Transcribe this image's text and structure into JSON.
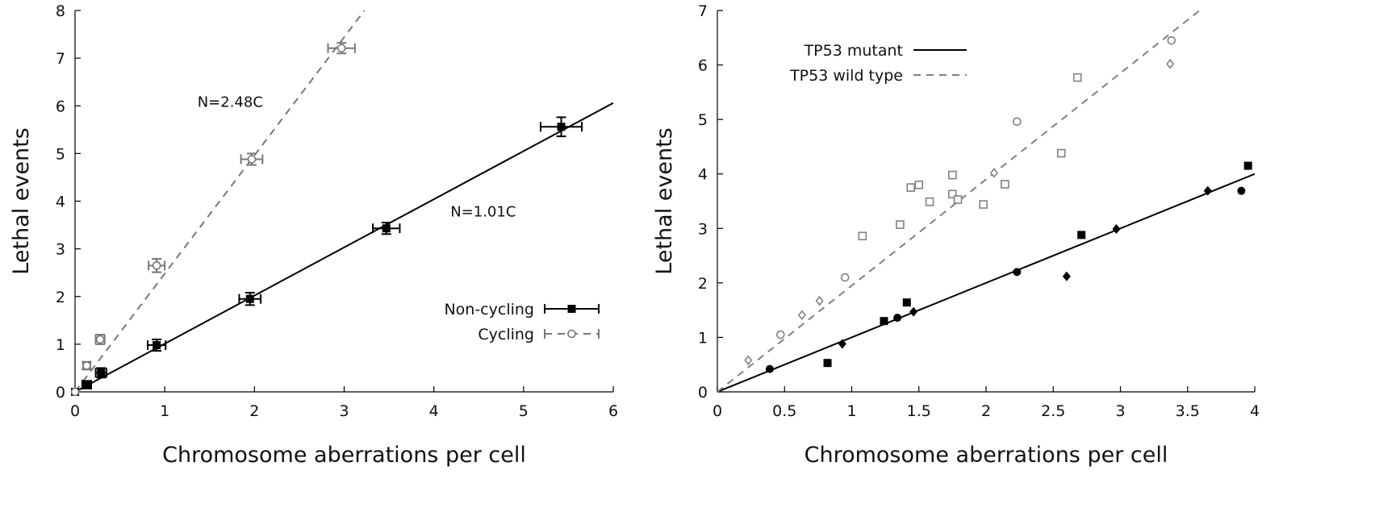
{
  "chart_data": [
    {
      "type": "scatter",
      "xlabel": "Chromosome aberrations per cell",
      "ylabel": "Lethal events",
      "xlim": [
        0,
        6
      ],
      "ylim": [
        0,
        8
      ],
      "xticks": [
        0,
        1,
        2,
        3,
        4,
        5,
        6
      ],
      "yticks": [
        0,
        1,
        2,
        3,
        4,
        5,
        6,
        7,
        8
      ],
      "series": [
        {
          "name": "Non-cycling",
          "color": "#000000",
          "marker": "square",
          "line": "solid",
          "points": [
            {
              "x": 0.0,
              "y": 0.0,
              "xerr": 0.0,
              "yerr": 0.0
            },
            {
              "x": 0.13,
              "y": 0.15,
              "xerr": 0.05,
              "yerr": 0.08
            },
            {
              "x": 0.29,
              "y": 0.4,
              "xerr": 0.06,
              "yerr": 0.1
            },
            {
              "x": 0.91,
              "y": 0.98,
              "xerr": 0.1,
              "yerr": 0.12
            },
            {
              "x": 1.95,
              "y": 1.95,
              "xerr": 0.12,
              "yerr": 0.13
            },
            {
              "x": 3.47,
              "y": 3.43,
              "xerr": 0.15,
              "yerr": 0.12
            },
            {
              "x": 5.42,
              "y": 5.56,
              "xerr": 0.23,
              "yerr": 0.2
            }
          ],
          "fit": {
            "slope": 1.01,
            "x_range": [
              0,
              6
            ]
          }
        },
        {
          "name": "Cycling",
          "color": "#777777",
          "marker": "circle-open",
          "line": "dashed",
          "points": [
            {
              "x": 0.0,
              "y": 0.0,
              "xerr": 0.0,
              "yerr": 0.0
            },
            {
              "x": 0.13,
              "y": 0.55,
              "xerr": 0.04,
              "yerr": 0.08
            },
            {
              "x": 0.28,
              "y": 1.1,
              "xerr": 0.05,
              "yerr": 0.1
            },
            {
              "x": 0.91,
              "y": 2.65,
              "xerr": 0.09,
              "yerr": 0.14
            },
            {
              "x": 1.97,
              "y": 4.88,
              "xerr": 0.12,
              "yerr": 0.12
            },
            {
              "x": 2.97,
              "y": 7.21,
              "xerr": 0.15,
              "yerr": 0.11
            }
          ],
          "fit": {
            "slope": 2.48,
            "x_range": [
              0,
              3.23
            ]
          }
        }
      ],
      "annotations": [
        {
          "text": "N=2.48C",
          "x": 1.73,
          "y": 5.98
        },
        {
          "text": "N=1.01C",
          "x": 4.55,
          "y": 3.68
        }
      ],
      "legend": {
        "position": "bottom-right",
        "entries": [
          "Non-cycling",
          "Cycling"
        ]
      }
    },
    {
      "type": "scatter",
      "xlabel": "Chromosome aberrations per cell",
      "ylabel": "Lethal events",
      "xlim": [
        0,
        4
      ],
      "ylim": [
        0,
        7
      ],
      "xticks": [
        0,
        0.5,
        1,
        1.5,
        2,
        2.5,
        3,
        3.5,
        4
      ],
      "yticks": [
        0,
        1,
        2,
        3,
        4,
        5,
        6,
        7
      ],
      "series": [
        {
          "name": "TP53 mutant",
          "color": "#000000",
          "line": "solid",
          "fit": {
            "slope": 1.0,
            "x_range": [
              0,
              4
            ]
          },
          "points": [
            {
              "x": 0.39,
              "y": 0.42,
              "marker": "circle"
            },
            {
              "x": 1.34,
              "y": 1.36,
              "marker": "circle"
            },
            {
              "x": 2.23,
              "y": 2.2,
              "marker": "circle"
            },
            {
              "x": 3.9,
              "y": 3.69,
              "marker": "circle"
            },
            {
              "x": 0.82,
              "y": 0.53,
              "marker": "square"
            },
            {
              "x": 1.24,
              "y": 1.3,
              "marker": "square"
            },
            {
              "x": 1.41,
              "y": 1.64,
              "marker": "square"
            },
            {
              "x": 2.71,
              "y": 2.88,
              "marker": "square"
            },
            {
              "x": 3.95,
              "y": 4.15,
              "marker": "square"
            },
            {
              "x": 0.93,
              "y": 0.88,
              "marker": "diamond"
            },
            {
              "x": 1.46,
              "y": 1.47,
              "marker": "diamond"
            },
            {
              "x": 2.6,
              "y": 2.12,
              "marker": "diamond"
            },
            {
              "x": 2.97,
              "y": 2.99,
              "marker": "diamond"
            },
            {
              "x": 3.65,
              "y": 3.69,
              "marker": "diamond"
            }
          ]
        },
        {
          "name": "TP53 wild type",
          "color": "#808080",
          "line": "dashed",
          "fit": {
            "slope": 1.95,
            "x_range": [
              0,
              3.6
            ]
          },
          "points": [
            {
              "x": 0.47,
              "y": 1.05,
              "marker": "circle-open"
            },
            {
              "x": 0.95,
              "y": 2.1,
              "marker": "circle-open"
            },
            {
              "x": 2.23,
              "y": 4.96,
              "marker": "circle-open"
            },
            {
              "x": 3.38,
              "y": 6.45,
              "marker": "circle-open"
            },
            {
              "x": 1.08,
              "y": 2.86,
              "marker": "square-open"
            },
            {
              "x": 1.36,
              "y": 3.07,
              "marker": "square-open"
            },
            {
              "x": 1.44,
              "y": 3.75,
              "marker": "square-open"
            },
            {
              "x": 1.5,
              "y": 3.8,
              "marker": "square-open"
            },
            {
              "x": 1.58,
              "y": 3.49,
              "marker": "square-open"
            },
            {
              "x": 1.75,
              "y": 3.98,
              "marker": "square-open"
            },
            {
              "x": 1.75,
              "y": 3.63,
              "marker": "square-open"
            },
            {
              "x": 1.79,
              "y": 3.53,
              "marker": "square-open"
            },
            {
              "x": 1.98,
              "y": 3.44,
              "marker": "square-open"
            },
            {
              "x": 2.14,
              "y": 3.81,
              "marker": "square-open"
            },
            {
              "x": 2.56,
              "y": 4.38,
              "marker": "square-open"
            },
            {
              "x": 2.68,
              "y": 5.77,
              "marker": "square-open"
            },
            {
              "x": 0.23,
              "y": 0.58,
              "marker": "diamond-open"
            },
            {
              "x": 0.63,
              "y": 1.41,
              "marker": "diamond-open"
            },
            {
              "x": 0.76,
              "y": 1.67,
              "marker": "diamond-open"
            },
            {
              "x": 2.06,
              "y": 4.02,
              "marker": "diamond-open"
            },
            {
              "x": 3.37,
              "y": 6.02,
              "marker": "diamond-open"
            }
          ]
        }
      ],
      "legend": {
        "position": "top-left",
        "entries": [
          "TP53 mutant",
          "TP53 wild type"
        ]
      }
    }
  ]
}
